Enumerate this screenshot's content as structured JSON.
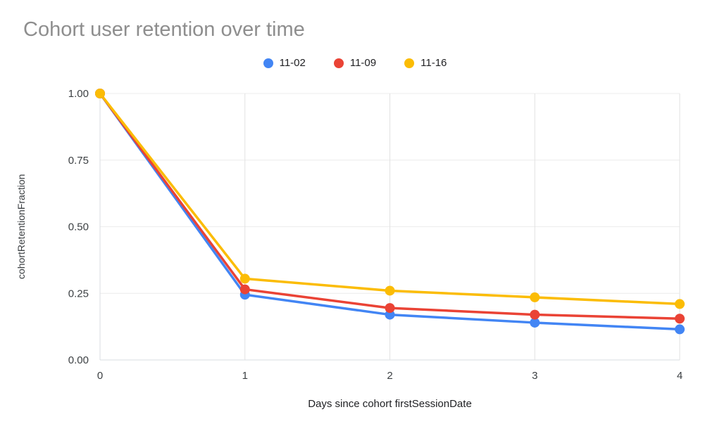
{
  "title": "Cohort user retention over time",
  "chart_data": {
    "type": "line",
    "title": "Cohort user retention over time",
    "xlabel": "Days since cohort firstSessionDate",
    "ylabel": "cohortRetentionFraction",
    "xlim": [
      0,
      4
    ],
    "ylim": [
      0,
      1
    ],
    "grid": true,
    "legend_position": "top",
    "x": [
      0,
      1,
      2,
      3,
      4
    ],
    "x_ticks": [
      0,
      1,
      2,
      3,
      4
    ],
    "x_tick_labels": [
      "0",
      "1",
      "2",
      "3",
      "4"
    ],
    "y_ticks": [
      0,
      0.25,
      0.5,
      0.75,
      1
    ],
    "y_tick_labels": [
      "0.00",
      "0.25",
      "0.50",
      "0.75",
      "1.00"
    ],
    "series": [
      {
        "name": "11-02",
        "color": "#4285F4",
        "values": [
          1.0,
          0.245,
          0.17,
          0.14,
          0.115
        ]
      },
      {
        "name": "11-09",
        "color": "#EA4335",
        "values": [
          1.0,
          0.265,
          0.195,
          0.17,
          0.155
        ]
      },
      {
        "name": "11-16",
        "color": "#FBBC04",
        "values": [
          1.0,
          0.305,
          0.26,
          0.235,
          0.21
        ]
      }
    ]
  }
}
